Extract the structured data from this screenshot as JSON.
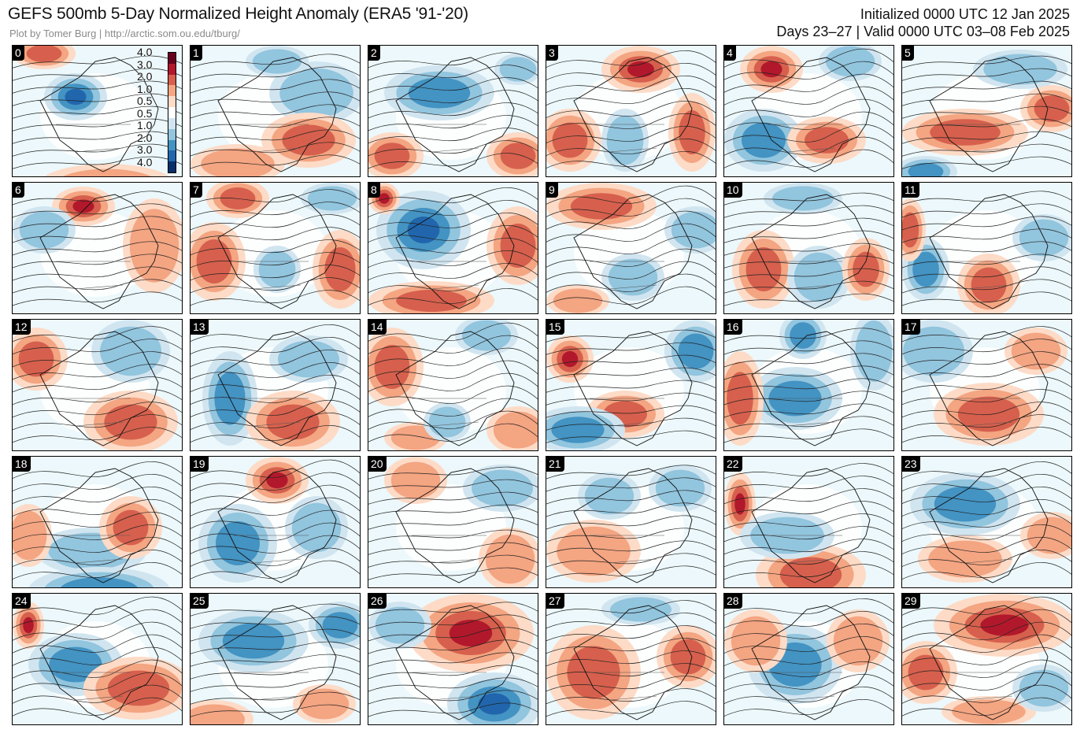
{
  "header": {
    "title": "GEFS 500mb 5-Day Normalized Height Anomaly (ERA5 '91-'20)",
    "credit": "Plot by Tomer Burg | http://arctic.som.ou.edu/tburg/",
    "initialized": "Initialized 0000 UTC 12 Jan 2025",
    "valid": "Days 23–27 | Valid 0000 UTC 03–08 Feb 2025"
  },
  "colors": {
    "neg4": "#08306b",
    "neg3": "#2166ac",
    "neg2": "#4393c3",
    "neg1": "#92c5de",
    "neg05": "#d1e5f0",
    "neutral": "#ffffff",
    "near": "#ecf8fb",
    "pos05": "#fddbc7",
    "pos1": "#f4a582",
    "pos2": "#d6604d",
    "pos3": "#b2182b",
    "pos4": "#67001f"
  },
  "colorbar": {
    "labels": [
      "4.0",
      "3.0",
      "2.0",
      "1.0",
      "0.5",
      "0.5",
      "1.0",
      "2.0",
      "3.0",
      "4.0"
    ]
  },
  "panels": [
    {
      "label": "0"
    },
    {
      "label": "1"
    },
    {
      "label": "2"
    },
    {
      "label": "3"
    },
    {
      "label": "4"
    },
    {
      "label": "5"
    },
    {
      "label": "6"
    },
    {
      "label": "7"
    },
    {
      "label": "8"
    },
    {
      "label": "9"
    },
    {
      "label": "10"
    },
    {
      "label": "11"
    },
    {
      "label": "12"
    },
    {
      "label": "13"
    },
    {
      "label": "14"
    },
    {
      "label": "15"
    },
    {
      "label": "16"
    },
    {
      "label": "17"
    },
    {
      "label": "18"
    },
    {
      "label": "19"
    },
    {
      "label": "20"
    },
    {
      "label": "21"
    },
    {
      "label": "22"
    },
    {
      "label": "23"
    },
    {
      "label": "24"
    },
    {
      "label": "25"
    },
    {
      "label": "26"
    },
    {
      "label": "27"
    },
    {
      "label": "28"
    },
    {
      "label": "29"
    }
  ]
}
